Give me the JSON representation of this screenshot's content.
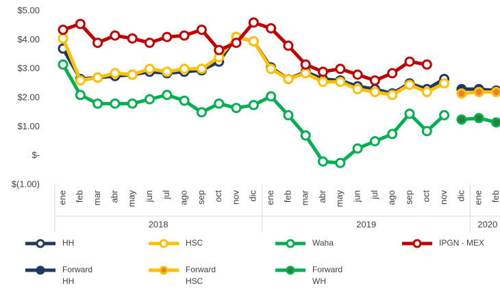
{
  "chart_data": {
    "type": "line",
    "category_groups": [
      {
        "label": "2018",
        "categories": [
          "ene",
          "feb",
          "mar",
          "abr",
          "may",
          "jun",
          "jul",
          "ago",
          "sep",
          "oct",
          "nov",
          "dic"
        ]
      },
      {
        "label": "2019",
        "categories": [
          "ene",
          "feb",
          "mar",
          "abr",
          "may",
          "jun",
          "jul",
          "ago",
          "sep",
          "oct",
          "nov",
          "dic"
        ]
      },
      {
        "label": "2020",
        "categories": [
          "ene",
          "feb"
        ]
      }
    ],
    "ylim": [
      -1,
      5
    ],
    "yticks": [
      {
        "value": -1,
        "label": "$(1.00)"
      },
      {
        "value": 0,
        "label": "$-"
      },
      {
        "value": 1,
        "label": "$1.00"
      },
      {
        "value": 2,
        "label": "$2.00"
      },
      {
        "value": 3,
        "label": "$3.00"
      },
      {
        "value": 4,
        "label": "$4.00"
      },
      {
        "value": 5,
        "label": "$5.00"
      }
    ],
    "grid": false,
    "series": [
      {
        "name": "HH",
        "color": "#1f3864",
        "marker_fill": "#ffffff",
        "values": [
          3.7,
          2.65,
          2.7,
          2.75,
          2.8,
          2.9,
          2.85,
          2.9,
          2.95,
          3.25,
          4.1,
          3.95,
          3.05,
          2.65,
          2.9,
          2.65,
          2.6,
          2.4,
          2.3,
          2.15,
          2.5,
          2.3,
          2.65,
          null,
          null,
          null
        ]
      },
      {
        "name": "HSC",
        "color": "#ffc000",
        "marker_fill": "#ffffff",
        "values": [
          4.05,
          2.6,
          2.7,
          2.85,
          2.8,
          3.0,
          2.9,
          3.0,
          3.0,
          3.4,
          4.1,
          3.95,
          3.0,
          2.65,
          2.85,
          2.55,
          2.55,
          2.3,
          2.2,
          2.1,
          2.45,
          2.2,
          2.5,
          null,
          null,
          null
        ]
      },
      {
        "name": "Waha",
        "color": "#00b050",
        "marker_fill": "#ffffff",
        "values": [
          3.15,
          2.1,
          1.8,
          1.8,
          1.8,
          1.95,
          2.1,
          1.9,
          1.5,
          1.8,
          1.65,
          1.75,
          2.05,
          1.4,
          0.7,
          -0.2,
          -0.25,
          0.25,
          0.5,
          0.75,
          1.45,
          0.85,
          1.4,
          null,
          null,
          null
        ]
      },
      {
        "name": "IPGN - MEX",
        "color": "#c00000",
        "marker_fill": "#ffffff",
        "values": [
          4.35,
          4.55,
          3.9,
          4.15,
          4.05,
          3.9,
          4.1,
          4.15,
          4.35,
          3.65,
          3.9,
          4.6,
          4.4,
          3.8,
          3.15,
          2.9,
          3.0,
          2.8,
          2.6,
          2.85,
          3.25,
          3.15,
          null,
          null,
          null,
          null
        ]
      },
      {
        "name": "Forward\nHH",
        "color": "#1f3864",
        "marker_fill": "#1f3864",
        "values": [
          null,
          null,
          null,
          null,
          null,
          null,
          null,
          null,
          null,
          null,
          null,
          null,
          null,
          null,
          null,
          null,
          null,
          null,
          null,
          null,
          null,
          null,
          null,
          2.3,
          2.3,
          2.25
        ]
      },
      {
        "name": "Forward\nHSC",
        "color": "#ffc000",
        "marker_fill": "#ed7d31",
        "values": [
          null,
          null,
          null,
          null,
          null,
          null,
          null,
          null,
          null,
          null,
          null,
          null,
          null,
          null,
          null,
          null,
          null,
          null,
          null,
          null,
          null,
          null,
          null,
          2.15,
          2.2,
          2.2
        ]
      },
      {
        "name": "Forward\nWH",
        "color": "#00b050",
        "marker_fill": "#2e7d32",
        "values": [
          null,
          null,
          null,
          null,
          null,
          null,
          null,
          null,
          null,
          null,
          null,
          null,
          null,
          null,
          null,
          null,
          null,
          null,
          null,
          null,
          null,
          null,
          null,
          1.25,
          1.3,
          1.15
        ]
      }
    ]
  }
}
